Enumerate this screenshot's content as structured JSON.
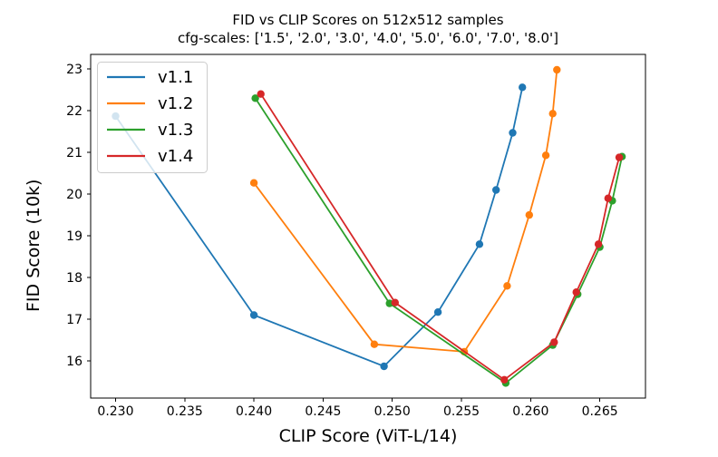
{
  "chart_data": {
    "type": "line",
    "title": "FID vs CLIP Scores on 512x512 samples",
    "subtitle": "cfg-scales: ['1.5', '2.0', '3.0', '4.0', '5.0', '6.0', '7.0', '8.0']",
    "xlabel": "CLIP Score (ViT-L/14)",
    "ylabel": "FID Score (10k)",
    "xlim": [
      0.2282,
      0.2683
    ],
    "ylim": [
      15.11,
      23.35
    ],
    "xticks": [
      0.23,
      0.235,
      0.24,
      0.245,
      0.25,
      0.255,
      0.26,
      0.265
    ],
    "yticks": [
      16,
      17,
      18,
      19,
      20,
      21,
      22,
      23
    ],
    "grid": false,
    "legend_position": "upper left",
    "cfg_scales": [
      "1.5",
      "2.0",
      "3.0",
      "4.0",
      "5.0",
      "6.0",
      "7.0",
      "8.0"
    ],
    "series": [
      {
        "name": "v1.1",
        "color": "#1f77b4",
        "x": [
          0.23,
          0.24,
          0.2494,
          0.2533,
          0.2563,
          0.2575,
          0.2587,
          0.2594
        ],
        "y": [
          21.87,
          17.1,
          15.87,
          17.17,
          18.8,
          20.1,
          21.47,
          22.56
        ]
      },
      {
        "name": "v1.2",
        "color": "#ff7f0e",
        "x": [
          0.24,
          0.2487,
          0.2552,
          0.2583,
          0.2599,
          0.2611,
          0.2616,
          0.2619
        ],
        "y": [
          20.27,
          16.4,
          16.22,
          17.8,
          19.5,
          20.93,
          21.93,
          22.98
        ]
      },
      {
        "name": "v1.3",
        "color": "#2ca02c",
        "x": [
          0.2401,
          0.2498,
          0.2582,
          0.2616,
          0.2634,
          0.265,
          0.2659,
          0.2666
        ],
        "y": [
          22.3,
          17.38,
          15.47,
          16.38,
          17.6,
          18.73,
          19.84,
          20.9
        ]
      },
      {
        "name": "v1.4",
        "color": "#d62728",
        "x": [
          0.2405,
          0.2502,
          0.2581,
          0.2617,
          0.2633,
          0.2649,
          0.2656,
          0.2664
        ],
        "y": [
          22.4,
          17.4,
          15.55,
          16.45,
          17.65,
          18.8,
          19.9,
          20.88
        ]
      }
    ],
    "style": {
      "spine_color": "#000000",
      "legend_border": "#cccccc",
      "legend_bg_opacity": 0.8
    }
  }
}
